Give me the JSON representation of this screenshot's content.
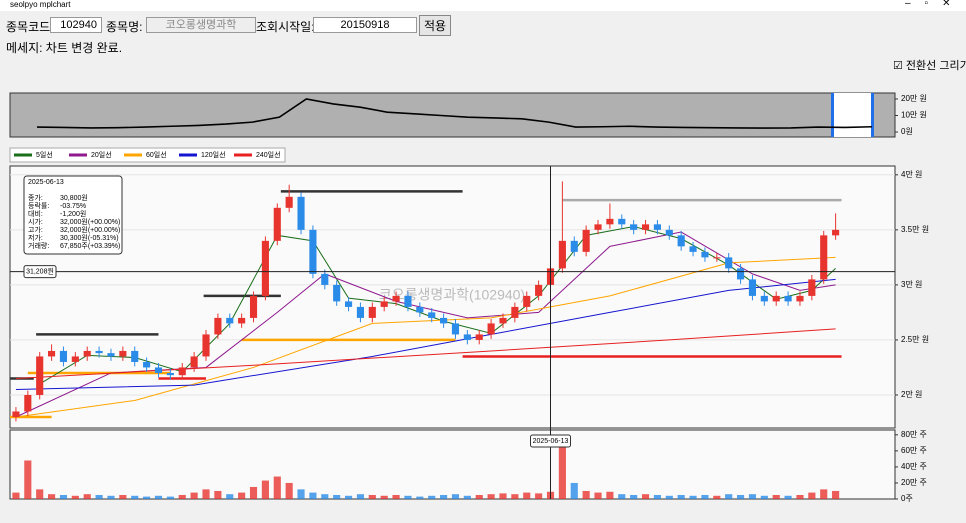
{
  "window": {
    "title": "seolpyo mplchart"
  },
  "form": {
    "code_label": "종목코드:",
    "code": "102940",
    "name_label": "종목명:",
    "name": "코오롱생명과학",
    "start_label": "조회시작일:",
    "start": "20150918",
    "apply": "적용"
  },
  "message": "메세지: 차트 변경 완료.",
  "checkbox_label": "전환선 그리기",
  "chart_data": {
    "type": "candlestick",
    "watermark": "코오롱생명과학(102940)",
    "xlim": [
      -0.5,
      74
    ],
    "ylim": [
      17000,
      40800
    ],
    "yticks": [
      {
        "value": 40000,
        "label": "4만 원"
      },
      {
        "value": 35000,
        "label": "3.5만 원"
      },
      {
        "value": 30000,
        "label": "3만 원"
      },
      {
        "value": 25000,
        "label": "2.5만 원"
      },
      {
        "value": 20000,
        "label": "2만 원"
      }
    ],
    "candles": [
      [
        18000,
        18900,
        17600,
        18500
      ],
      [
        18500,
        20400,
        18100,
        20000
      ],
      [
        20000,
        23900,
        19600,
        23500
      ],
      [
        23500,
        24600,
        23100,
        24000
      ],
      [
        24000,
        24400,
        22600,
        23000
      ],
      [
        23000,
        23900,
        22600,
        23500
      ],
      [
        23500,
        24400,
        23100,
        24000
      ],
      [
        24000,
        24400,
        23400,
        23800
      ],
      [
        23800,
        24200,
        23100,
        23500
      ],
      [
        23500,
        24400,
        23100,
        24000
      ],
      [
        24000,
        24400,
        22600,
        23000
      ],
      [
        23000,
        23400,
        22100,
        22500
      ],
      [
        22500,
        22900,
        21600,
        22000
      ],
      [
        22000,
        22400,
        21400,
        21800
      ],
      [
        21800,
        22900,
        21400,
        22500
      ],
      [
        22500,
        23900,
        22100,
        23500
      ],
      [
        23500,
        25900,
        23100,
        25500
      ],
      [
        25500,
        27400,
        25100,
        27000
      ],
      [
        27000,
        27400,
        26100,
        26500
      ],
      [
        26500,
        27400,
        26100,
        27000
      ],
      [
        27000,
        29400,
        26600,
        29000
      ],
      [
        29000,
        34400,
        28600,
        34000
      ],
      [
        34000,
        37400,
        33600,
        37000
      ],
      [
        37000,
        39100,
        36600,
        38000
      ],
      [
        38000,
        38400,
        34600,
        35000
      ],
      [
        35000,
        35400,
        30600,
        31000
      ],
      [
        31000,
        31400,
        29600,
        30000
      ],
      [
        30000,
        30400,
        28100,
        28500
      ],
      [
        28500,
        28900,
        27600,
        28000
      ],
      [
        28000,
        28400,
        26600,
        27000
      ],
      [
        27000,
        28400,
        26600,
        28000
      ],
      [
        28000,
        28900,
        27600,
        28500
      ],
      [
        28500,
        29400,
        28100,
        29000
      ],
      [
        29000,
        29400,
        27600,
        28000
      ],
      [
        28000,
        28400,
        27100,
        27500
      ],
      [
        27500,
        27900,
        26600,
        27000
      ],
      [
        27000,
        27400,
        26100,
        26500
      ],
      [
        26500,
        26900,
        25100,
        25500
      ],
      [
        25500,
        25900,
        24600,
        25000
      ],
      [
        25000,
        25900,
        24600,
        25500
      ],
      [
        25500,
        26900,
        25100,
        26500
      ],
      [
        26500,
        27400,
        26100,
        27000
      ],
      [
        27000,
        28400,
        26600,
        28000
      ],
      [
        28000,
        29400,
        27600,
        29000
      ],
      [
        29000,
        30400,
        28600,
        30000
      ],
      [
        30000,
        31900,
        29600,
        31500
      ],
      [
        31500,
        39400,
        31100,
        34000
      ],
      [
        34000,
        34400,
        32600,
        33000
      ],
      [
        33000,
        35400,
        32600,
        35000
      ],
      [
        35000,
        35900,
        34600,
        35500
      ],
      [
        35500,
        37400,
        35100,
        36000
      ],
      [
        36000,
        36400,
        35100,
        35500
      ],
      [
        35500,
        35900,
        34600,
        35000
      ],
      [
        35000,
        35900,
        34600,
        35500
      ],
      [
        35500,
        35900,
        34600,
        35000
      ],
      [
        35000,
        35400,
        34100,
        34500
      ],
      [
        34500,
        34900,
        33100,
        33500
      ],
      [
        33500,
        33900,
        32600,
        33000
      ],
      [
        33000,
        33400,
        32100,
        32500
      ],
      [
        32500,
        32900,
        32100,
        32500
      ],
      [
        32500,
        32900,
        31100,
        31500
      ],
      [
        31500,
        31900,
        30100,
        30500
      ],
      [
        30500,
        30900,
        28600,
        29000
      ],
      [
        29000,
        29400,
        28100,
        28500
      ],
      [
        28500,
        29400,
        28100,
        29000
      ],
      [
        29000,
        29400,
        28100,
        28500
      ],
      [
        28500,
        29400,
        28100,
        29000
      ],
      [
        29000,
        30900,
        28600,
        30500
      ],
      [
        30500,
        34900,
        30100,
        34500
      ],
      [
        34500,
        36500,
        34100,
        35000
      ]
    ],
    "volumes": [
      80000,
      480000,
      120000,
      60000,
      50000,
      40000,
      60000,
      50000,
      40000,
      50000,
      40000,
      30000,
      40000,
      30000,
      50000,
      80000,
      120000,
      100000,
      60000,
      80000,
      150000,
      230000,
      280000,
      200000,
      120000,
      80000,
      60000,
      50000,
      40000,
      60000,
      50000,
      40000,
      50000,
      40000,
      30000,
      40000,
      50000,
      60000,
      40000,
      50000,
      60000,
      70000,
      60000,
      80000,
      70000,
      90000,
      750000,
      200000,
      100000,
      80000,
      90000,
      60000,
      50000,
      60000,
      50000,
      40000,
      50000,
      40000,
      50000,
      40000,
      60000,
      50000,
      60000,
      40000,
      50000,
      40000,
      50000,
      80000,
      120000,
      100000
    ],
    "vol_ylim": [
      0,
      860000
    ],
    "vol_ticks": [
      {
        "value": 800000,
        "label": "80만 주"
      },
      {
        "value": 600000,
        "label": "60만 주"
      },
      {
        "value": 400000,
        "label": "40만 주"
      },
      {
        "value": 200000,
        "label": "20만 주"
      },
      {
        "value": 0,
        "label": "0주"
      }
    ],
    "series": [
      {
        "name": "5일선",
        "color": "#1a6e1a",
        "x": [
          2,
          6,
          10,
          14,
          18,
          22,
          25,
          28,
          32,
          36,
          40,
          44,
          48,
          52,
          56,
          60,
          64,
          67,
          69
        ],
        "values": [
          21000,
          23600,
          23400,
          22100,
          26500,
          34500,
          34000,
          28800,
          28300,
          26700,
          25600,
          29000,
          34500,
          35300,
          34200,
          31800,
          28700,
          29500,
          31500
        ]
      },
      {
        "name": "20일선",
        "color": "#8e1a8e",
        "x": [
          0,
          8,
          16,
          22,
          26,
          32,
          38,
          44,
          50,
          56,
          62,
          66,
          69
        ],
        "values": [
          18000,
          22000,
          22500,
          27500,
          31000,
          28500,
          27000,
          27500,
          33500,
          34800,
          31000,
          29500,
          30000
        ]
      },
      {
        "name": "60일선",
        "color": "#ffa500",
        "x": [
          0,
          10,
          20,
          30,
          40,
          50,
          60,
          69
        ],
        "values": [
          18000,
          19500,
          22500,
          26500,
          27000,
          29000,
          32000,
          32500
        ]
      },
      {
        "name": "120일선",
        "color": "#1515d0",
        "x": [
          0,
          15,
          30,
          40,
          50,
          60,
          69
        ],
        "values": [
          20500,
          20900,
          23500,
          25500,
          27500,
          29500,
          30500
        ]
      },
      {
        "name": "240일선",
        "color": "#e82020",
        "x": [
          0,
          20,
          40,
          55,
          69
        ],
        "values": [
          21500,
          22700,
          24000,
          25000,
          26000
        ]
      }
    ],
    "levels": [
      {
        "price": 38500,
        "from": 22.3,
        "to": 37.6,
        "color": "#333333"
      },
      {
        "price": 25500,
        "from": 1.7,
        "to": 12,
        "color": "#333333"
      },
      {
        "price": 29000,
        "from": 15.8,
        "to": 22.3,
        "color": "#333333"
      },
      {
        "price": 21500,
        "from": -0.5,
        "to": 1.5,
        "color": "#333333"
      },
      {
        "price": 22000,
        "from": 1,
        "to": 13,
        "color": "#ffa500"
      },
      {
        "price": 25000,
        "from": 19,
        "to": 37,
        "color": "#ffa500"
      },
      {
        "price": 18000,
        "from": -0.5,
        "to": 3,
        "color": "#ffa500"
      },
      {
        "price": 21500,
        "from": 12,
        "to": 16,
        "color": "#e82020"
      },
      {
        "price": 23500,
        "from": 37.6,
        "to": 69.5,
        "color": "#e82020"
      },
      {
        "price": 37700,
        "from": 46,
        "to": 69.5,
        "color": "#aaaaaa"
      }
    ],
    "overview": {
      "ylim": [
        -30000,
        236000
      ],
      "yticks": [
        {
          "value": 200000,
          "label": "20만 원"
        },
        {
          "value": 100000,
          "label": "10만 원"
        },
        {
          "value": 0,
          "label": "0원"
        }
      ],
      "values": [
        30000,
        28000,
        25000,
        26000,
        30000,
        35000,
        40000,
        48000,
        60000,
        90000,
        200000,
        170000,
        150000,
        120000,
        110000,
        100000,
        90000,
        85000,
        80000,
        60000,
        30000,
        32000,
        35000,
        30000,
        28000,
        26000,
        25000,
        24000,
        25000,
        30000,
        28000,
        32000
      ]
    },
    "info": {
      "date": "2025-06-13",
      "rows": [
        [
          "종가:",
          "30,800원"
        ],
        [
          "등락률:",
          "-03.75%"
        ],
        [
          "대비:",
          "-1,200원"
        ],
        [
          "시가:",
          "32,000원(+00.00%)"
        ],
        [
          "고가:",
          "32,000원(+00.00%)"
        ],
        [
          "저가:",
          "30,300원(-05.31%)"
        ],
        [
          "거래량:",
          "67,850주(+03.39%)"
        ]
      ]
    },
    "crosshair": {
      "x": 45,
      "price": 31208,
      "value_label": "31,208원",
      "date_label": "2025-06-13"
    }
  }
}
